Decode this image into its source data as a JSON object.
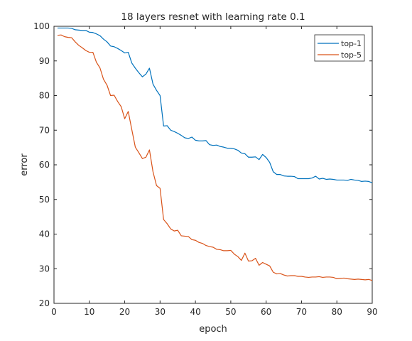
{
  "chart_data": {
    "type": "line",
    "title": "18 layers resnet with learning rate 0.1",
    "xlabel": "epoch",
    "ylabel": "error",
    "xlim": [
      0,
      90
    ],
    "ylim": [
      20,
      100
    ],
    "xticks": [
      0,
      10,
      20,
      30,
      40,
      50,
      60,
      70,
      80,
      90
    ],
    "yticks": [
      20,
      30,
      40,
      50,
      60,
      70,
      80,
      90,
      100
    ],
    "grid": false,
    "legend_position": "top-right",
    "series": [
      {
        "name": "top-1",
        "color": "#0072BD",
        "x": [
          1,
          2,
          3,
          4,
          5,
          6,
          7,
          8,
          9,
          10,
          11,
          12,
          13,
          14,
          15,
          16,
          17,
          18,
          19,
          20,
          21,
          22,
          23,
          24,
          25,
          26,
          27,
          28,
          29,
          30,
          31,
          32,
          33,
          34,
          35,
          36,
          37,
          38,
          39,
          40,
          41,
          42,
          43,
          44,
          45,
          46,
          47,
          48,
          49,
          50,
          51,
          52,
          53,
          54,
          55,
          56,
          57,
          58,
          59,
          60,
          61,
          62,
          63,
          64,
          65,
          66,
          67,
          68,
          69,
          70,
          71,
          72,
          73,
          74,
          75,
          76,
          77,
          78,
          79,
          80,
          81,
          82,
          83,
          84,
          85,
          86,
          87,
          88,
          89,
          90
        ],
        "y": [
          99.5,
          99.5,
          99.5,
          99.5,
          99.4,
          99.0,
          98.9,
          98.8,
          98.8,
          98.3,
          98.2,
          97.8,
          97.3,
          96.3,
          95.5,
          94.3,
          94.1,
          93.6,
          93.0,
          92.3,
          92.5,
          89.4,
          87.9,
          86.6,
          85.4,
          86.2,
          87.9,
          83.3,
          81.5,
          80.0,
          71.2,
          71.3,
          70.0,
          69.6,
          69.1,
          68.5,
          67.8,
          67.6,
          68.0,
          67.1,
          66.9,
          66.9,
          67.0,
          65.8,
          65.6,
          65.7,
          65.3,
          65.1,
          64.8,
          64.8,
          64.6,
          64.2,
          63.4,
          63.2,
          62.2,
          62.2,
          62.3,
          61.5,
          63.0,
          62.1,
          60.7,
          58.0,
          57.2,
          57.2,
          56.8,
          56.7,
          56.7,
          56.6,
          56.0,
          56.0,
          56.0,
          56.0,
          56.2,
          56.7,
          55.9,
          56.1,
          55.8,
          55.9,
          55.8,
          55.6,
          55.6,
          55.6,
          55.5,
          55.8,
          55.6,
          55.5,
          55.2,
          55.3,
          55.2,
          54.8
        ]
      },
      {
        "name": "top-5",
        "color": "#D95319",
        "x": [
          1,
          2,
          3,
          4,
          5,
          6,
          7,
          8,
          9,
          10,
          11,
          12,
          13,
          14,
          15,
          16,
          17,
          18,
          19,
          20,
          21,
          22,
          23,
          24,
          25,
          26,
          27,
          28,
          29,
          30,
          31,
          32,
          33,
          34,
          35,
          36,
          37,
          38,
          39,
          40,
          41,
          42,
          43,
          44,
          45,
          46,
          47,
          48,
          49,
          50,
          51,
          52,
          53,
          54,
          55,
          56,
          57,
          58,
          59,
          60,
          61,
          62,
          63,
          64,
          65,
          66,
          67,
          68,
          69,
          70,
          71,
          72,
          73,
          74,
          75,
          76,
          77,
          78,
          79,
          80,
          81,
          82,
          83,
          84,
          85,
          86,
          87,
          88,
          89,
          90
        ],
        "y": [
          97.4,
          97.5,
          97.0,
          96.8,
          96.7,
          95.5,
          94.5,
          93.8,
          93.0,
          92.5,
          92.5,
          89.6,
          88.0,
          84.7,
          83.0,
          80.0,
          80.1,
          78.3,
          76.8,
          73.3,
          75.4,
          70.2,
          65.1,
          63.5,
          61.8,
          62.2,
          64.3,
          58.0,
          54.0,
          53.2,
          44.2,
          43.0,
          41.5,
          40.9,
          41.1,
          39.5,
          39.4,
          39.3,
          38.4,
          38.2,
          37.6,
          37.3,
          36.7,
          36.4,
          36.2,
          35.6,
          35.5,
          35.2,
          35.2,
          35.3,
          34.2,
          33.5,
          32.4,
          34.5,
          32.2,
          32.3,
          33.0,
          31.0,
          31.8,
          31.3,
          30.8,
          29.0,
          28.5,
          28.6,
          28.2,
          27.9,
          28.0,
          28.0,
          27.8,
          27.8,
          27.6,
          27.5,
          27.6,
          27.6,
          27.7,
          27.5,
          27.6,
          27.6,
          27.5,
          27.1,
          27.2,
          27.3,
          27.1,
          27.0,
          26.9,
          27.0,
          26.9,
          26.8,
          26.9,
          26.6
        ]
      }
    ]
  }
}
